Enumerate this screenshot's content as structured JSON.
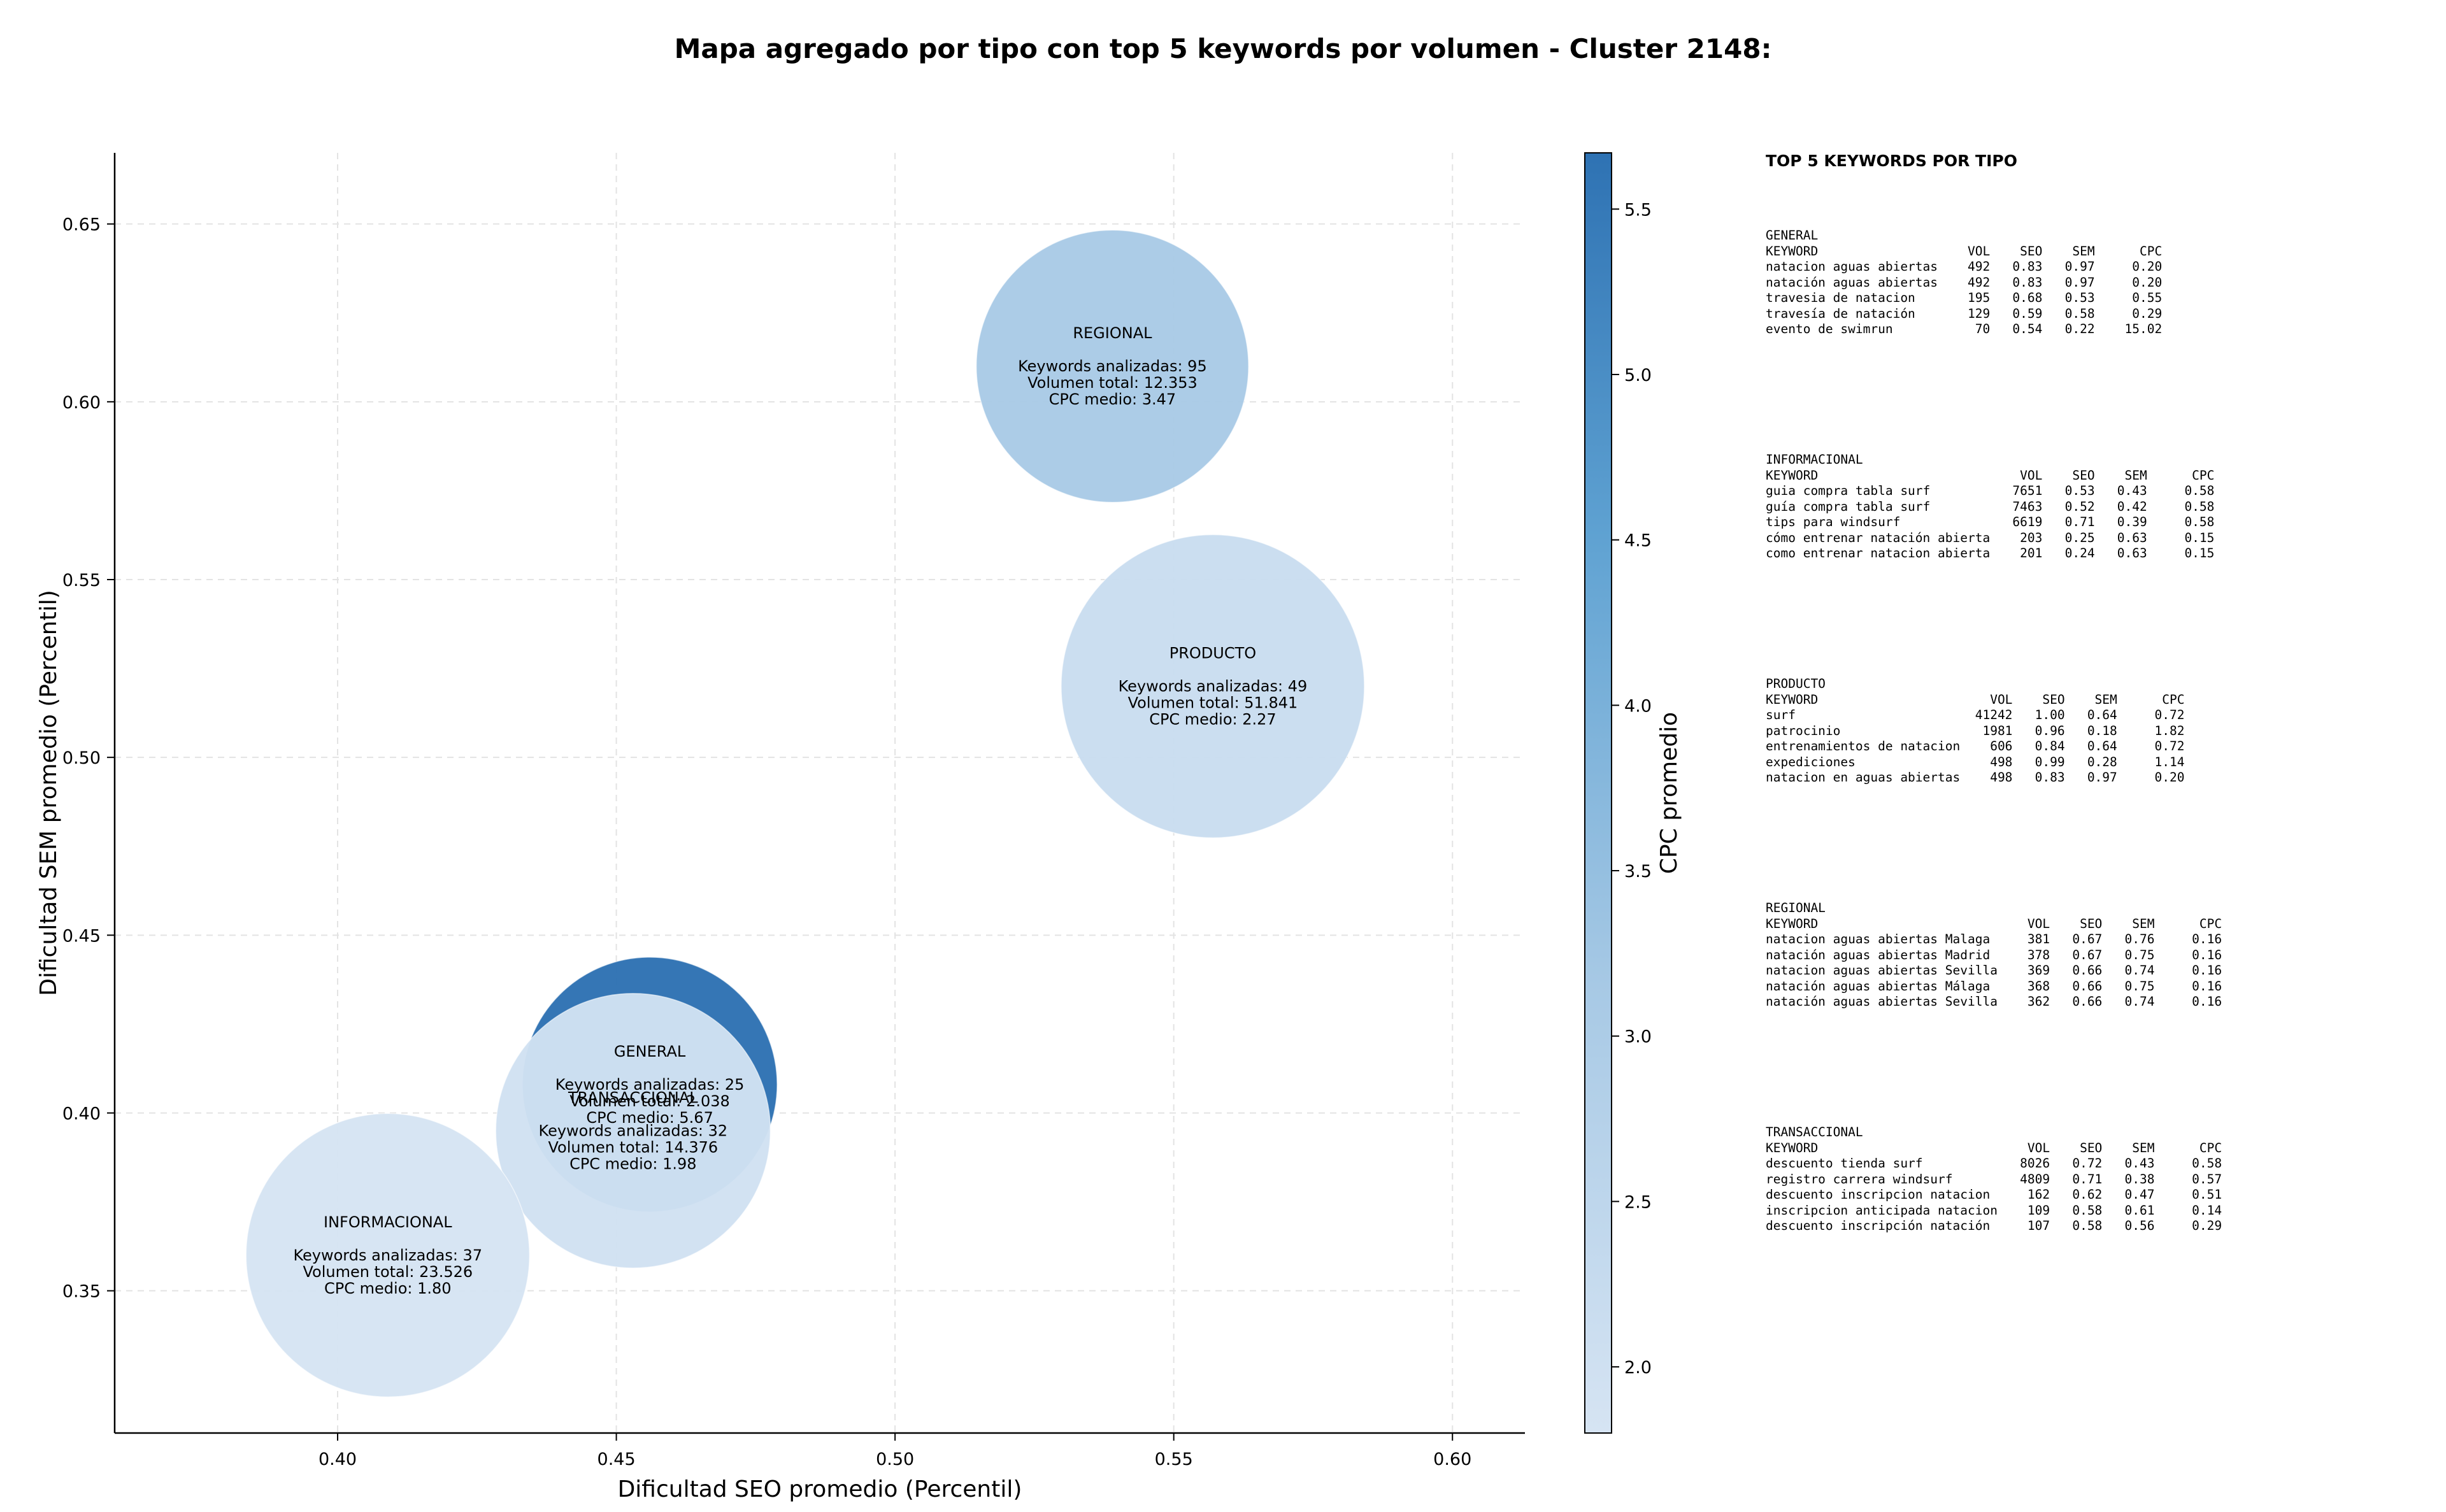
{
  "chart_data": {
    "type": "scatter",
    "title": "Mapa agregado por tipo con top 5 keywords por volumen - Cluster 2148:",
    "xlabel": "Dificultad SEO promedio (Percentil)",
    "ylabel": "Dificultad SEM promedio (Percentil)",
    "xlim": [
      0.36,
      0.613
    ],
    "ylim": [
      0.31,
      0.67
    ],
    "xticks": [
      "0.40",
      "0.45",
      "0.50",
      "0.55",
      "0.60"
    ],
    "yticks": [
      "0.35",
      "0.40",
      "0.45",
      "0.50",
      "0.55",
      "0.60",
      "0.65"
    ],
    "grid": true,
    "colorbar": {
      "label": "CPC promedio",
      "min": 1.8,
      "max": 5.67,
      "ticks": [
        "2.0",
        "2.5",
        "3.0",
        "3.5",
        "4.0",
        "4.5",
        "5.0",
        "5.5"
      ],
      "color_low": "#d6e4f3",
      "color_high": "#2e72b3"
    },
    "bubble_label_fmt": {
      "keywords": "Keywords analizadas: ",
      "volumen": "Volumen total: ",
      "cpc": "CPC medio: "
    },
    "points": [
      {
        "name": "REGIONAL",
        "x": 0.539,
        "y": 0.61,
        "keywords": "95",
        "volumen": "12.353",
        "cpc": "3.47",
        "cpc_value": 3.47,
        "size": 12353
      },
      {
        "name": "PRODUCTO",
        "x": 0.557,
        "y": 0.52,
        "keywords": "49",
        "volumen": "51.841",
        "cpc": "2.27",
        "cpc_value": 2.27,
        "size": 51841
      },
      {
        "name": "GENERAL",
        "x": 0.456,
        "y": 0.408,
        "keywords": "25",
        "volumen": "2.038",
        "cpc": "5.67",
        "cpc_value": 5.67,
        "size": 2038
      },
      {
        "name": "TRANSACCIONAL",
        "x": 0.453,
        "y": 0.395,
        "keywords": "32",
        "volumen": "14.376",
        "cpc": "1.98",
        "cpc_value": 1.98,
        "size": 14376
      },
      {
        "name": "INFORMACIONAL",
        "x": 0.409,
        "y": 0.36,
        "keywords": "37",
        "volumen": "23.526",
        "cpc": "1.80",
        "cpc_value": 1.8,
        "size": 23526
      }
    ]
  },
  "panel": {
    "title": "TOP 5 KEYWORDS POR TIPO",
    "blocks": [
      {
        "name": "GENERAL",
        "header": "KEYWORD                    VOL    SEO    SEM      CPC",
        "rows": [
          "natacion aguas abiertas    492   0.83   0.97     0.20",
          "natación aguas abiertas    492   0.83   0.97     0.20",
          "travesia de natacion       195   0.68   0.53     0.55",
          "travesía de natación       129   0.59   0.58     0.29",
          "evento de swimrun           70   0.54   0.22    15.02"
        ]
      },
      {
        "name": "INFORMACIONAL",
        "header": "KEYWORD                           VOL    SEO    SEM      CPC",
        "rows": [
          "guia compra tabla surf           7651   0.53   0.43     0.58",
          "guía compra tabla surf           7463   0.52   0.42     0.58",
          "tips para windsurf               6619   0.71   0.39     0.58",
          "cómo entrenar natación abierta    203   0.25   0.63     0.15",
          "como entrenar natacion abierta    201   0.24   0.63     0.15"
        ]
      },
      {
        "name": "PRODUCTO",
        "header": "KEYWORD                       VOL    SEO    SEM      CPC",
        "rows": [
          "surf                        41242   1.00   0.64     0.72",
          "patrocinio                   1981   0.96   0.18     1.82",
          "entrenamientos de natacion    606   0.84   0.64     0.72",
          "expediciones                  498   0.99   0.28     1.14",
          "natacion en aguas abiertas    498   0.83   0.97     0.20"
        ]
      },
      {
        "name": "REGIONAL",
        "header": "KEYWORD                            VOL    SEO    SEM      CPC",
        "rows": [
          "natacion aguas abiertas Malaga     381   0.67   0.76     0.16",
          "natación aguas abiertas Madrid     378   0.67   0.75     0.16",
          "natacion aguas abiertas Sevilla    369   0.66   0.74     0.16",
          "natación aguas abiertas Málaga     368   0.66   0.75     0.16",
          "natación aguas abiertas Sevilla    362   0.66   0.74     0.16"
        ]
      },
      {
        "name": "TRANSACCIONAL",
        "header": "KEYWORD                            VOL    SEO    SEM      CPC",
        "rows": [
          "descuento tienda surf             8026   0.72   0.43     0.58",
          "registro carrera windsurf         4809   0.71   0.38     0.57",
          "descuento inscripcion natacion     162   0.62   0.47     0.51",
          "inscripcion anticipada natacion    109   0.58   0.61     0.14",
          "descuento inscripción natación     107   0.58   0.56     0.29"
        ]
      }
    ]
  }
}
